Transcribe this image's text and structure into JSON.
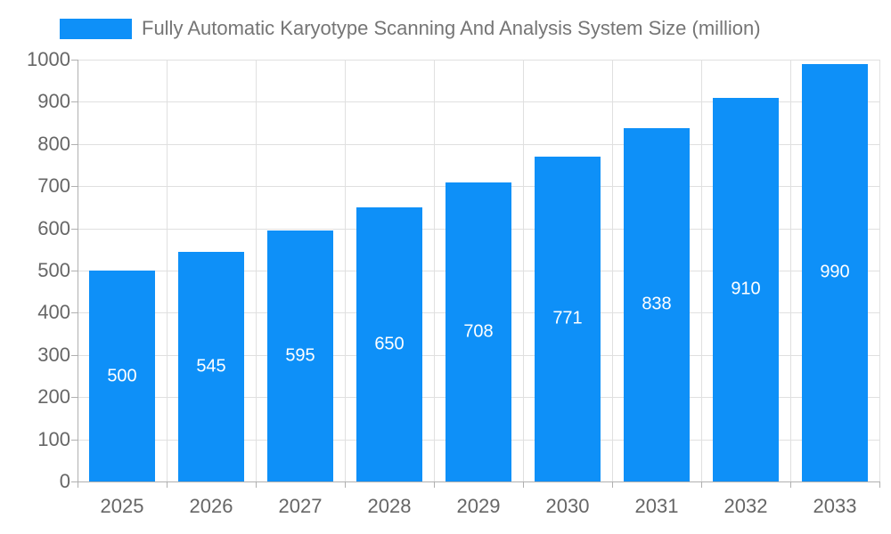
{
  "legend": {
    "label": "Fully Automatic Karyotype Scanning And Analysis System Size (million)"
  },
  "colors": {
    "bar": "#0E90F8",
    "legend_text": "#757575",
    "axis_text": "#666666",
    "value_label": "#ffffff",
    "grid": "#e0e0e0",
    "axis_line": "#b0b0b0",
    "tick": "#b0b0b0"
  },
  "chart_data": {
    "type": "bar",
    "title": "Fully Automatic Karyotype Scanning And Analysis System Size (million)",
    "categories": [
      "2025",
      "2026",
      "2027",
      "2028",
      "2029",
      "2030",
      "2031",
      "2032",
      "2033"
    ],
    "values": [
      500,
      545,
      595,
      650,
      708,
      771,
      838,
      910,
      990
    ],
    "xlabel": "",
    "ylabel": "",
    "ylim": [
      0,
      1000
    ],
    "ytick_step": 100,
    "yticks": [
      0,
      100,
      200,
      300,
      400,
      500,
      600,
      700,
      800,
      900,
      1000
    ],
    "grid": true,
    "legend_position": "top",
    "bar_labels": true
  }
}
